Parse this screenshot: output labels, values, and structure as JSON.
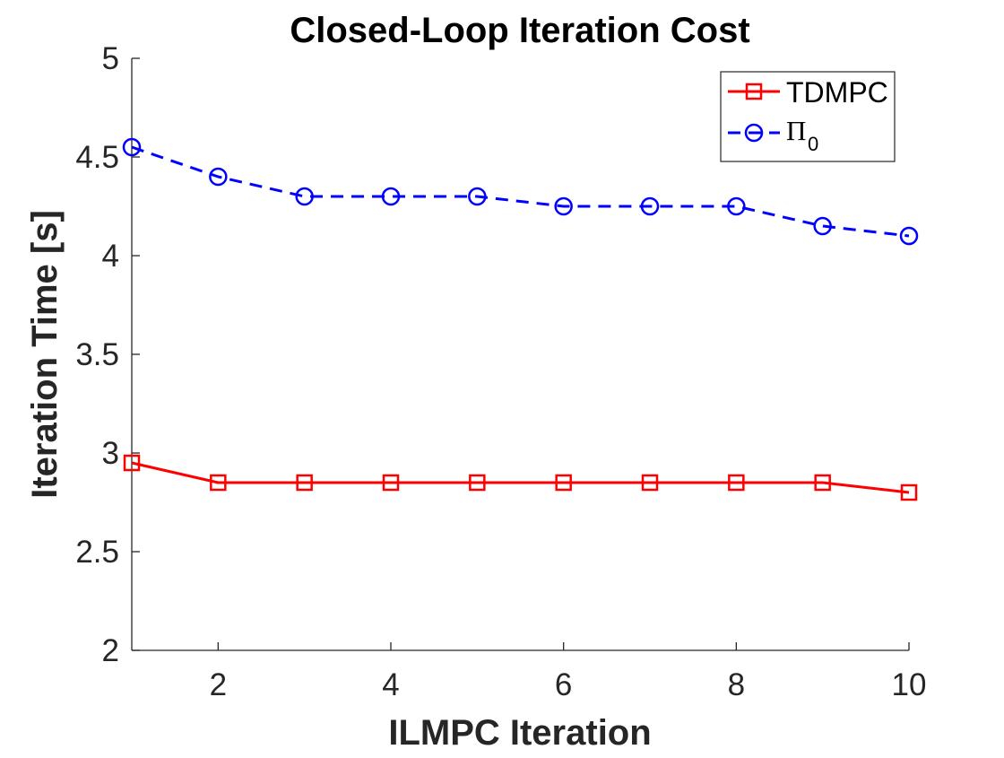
{
  "chart_data": {
    "type": "line",
    "title": "Closed-Loop Iteration Cost",
    "xlabel": "ILMPC Iteration",
    "ylabel": "Iteration Time [s]",
    "x": [
      1,
      2,
      3,
      4,
      5,
      6,
      7,
      8,
      9,
      10
    ],
    "xlim": [
      1,
      10
    ],
    "ylim": [
      2,
      5
    ],
    "xticks": [
      2,
      4,
      6,
      8,
      10
    ],
    "xtick_labels": [
      "2",
      "4",
      "6",
      "8",
      "10"
    ],
    "yticks": [
      2,
      2.5,
      3,
      3.5,
      4,
      4.5,
      5
    ],
    "ytick_labels": [
      "2",
      "2.5",
      "3",
      "3.5",
      "4",
      "4.5",
      "5"
    ],
    "grid": false,
    "legend_position": "top-right",
    "series": [
      {
        "name": "TDMPC",
        "legend_label": "TDMPC",
        "color": "#ff0000",
        "line_style": "solid",
        "marker": "square",
        "values": [
          2.95,
          2.85,
          2.85,
          2.85,
          2.85,
          2.85,
          2.85,
          2.85,
          2.85,
          2.8
        ]
      },
      {
        "name": "Pi_0",
        "legend_label": "Π",
        "legend_subscript": "0",
        "color": "#0000ff",
        "line_style": "dashed",
        "marker": "circle",
        "values": [
          4.55,
          4.4,
          4.3,
          4.3,
          4.3,
          4.25,
          4.25,
          4.25,
          4.15,
          4.1
        ]
      }
    ]
  }
}
